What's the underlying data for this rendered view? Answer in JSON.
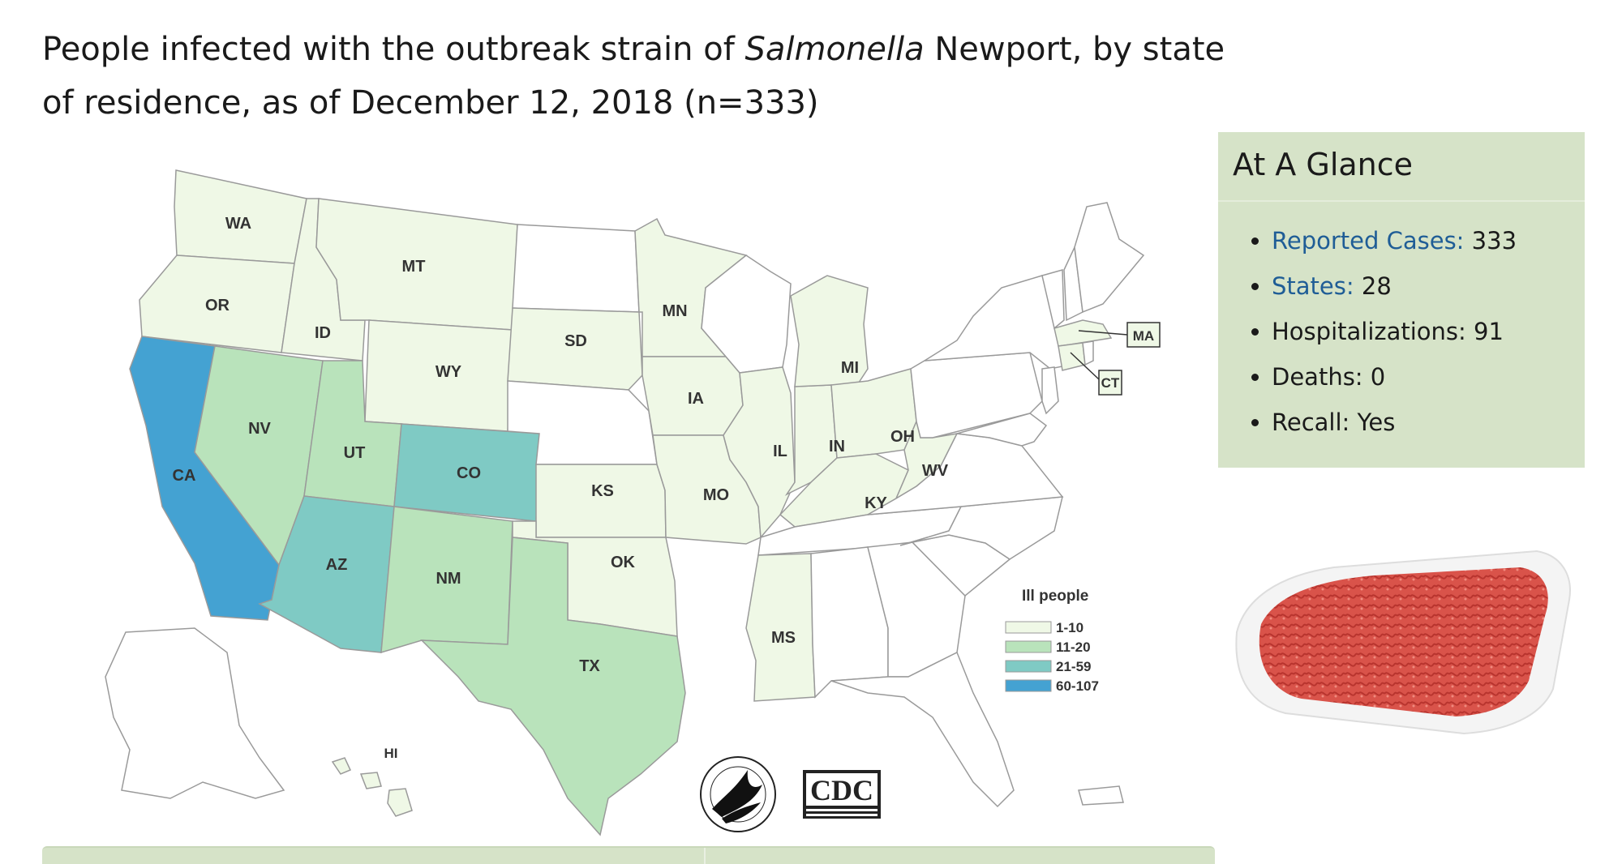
{
  "title": {
    "part1": "People infected with the outbreak strain of ",
    "italic": "Salmonella",
    "part2": " Newport, by state of residence, as of December 12, 2018 (n=333)"
  },
  "map": {
    "colors": {
      "none": "#ffffff",
      "low": "#eff8e6",
      "mid": "#b9e3bb",
      "high": "#7fcac4",
      "top": "#44a2d2"
    },
    "states": [
      {
        "abbr": "WA",
        "bin": "low"
      },
      {
        "abbr": "OR",
        "bin": "low"
      },
      {
        "abbr": "CA",
        "bin": "top"
      },
      {
        "abbr": "ID",
        "bin": "low"
      },
      {
        "abbr": "NV",
        "bin": "mid"
      },
      {
        "abbr": "MT",
        "bin": "low"
      },
      {
        "abbr": "WY",
        "bin": "low"
      },
      {
        "abbr": "UT",
        "bin": "mid"
      },
      {
        "abbr": "AZ",
        "bin": "high"
      },
      {
        "abbr": "CO",
        "bin": "high"
      },
      {
        "abbr": "NM",
        "bin": "mid"
      },
      {
        "abbr": "TX",
        "bin": "mid"
      },
      {
        "abbr": "SD",
        "bin": "low"
      },
      {
        "abbr": "KS",
        "bin": "low"
      },
      {
        "abbr": "OK",
        "bin": "low"
      },
      {
        "abbr": "MN",
        "bin": "low"
      },
      {
        "abbr": "IA",
        "bin": "low"
      },
      {
        "abbr": "MO",
        "bin": "low"
      },
      {
        "abbr": "IL",
        "bin": "low"
      },
      {
        "abbr": "IN",
        "bin": "low"
      },
      {
        "abbr": "MI",
        "bin": "low"
      },
      {
        "abbr": "OH",
        "bin": "low"
      },
      {
        "abbr": "KY",
        "bin": "low"
      },
      {
        "abbr": "WV",
        "bin": "low"
      },
      {
        "abbr": "MS",
        "bin": "low"
      },
      {
        "abbr": "MA",
        "bin": "low"
      },
      {
        "abbr": "CT",
        "bin": "low"
      },
      {
        "abbr": "HI",
        "bin": "low"
      }
    ],
    "legend": {
      "title": "Ill people",
      "items": [
        {
          "label": "1-10",
          "color": "#eff8e6"
        },
        {
          "label": "11-20",
          "color": "#b9e3bb"
        },
        {
          "label": "21-59",
          "color": "#7fcac4"
        },
        {
          "label": "60-107",
          "color": "#44a2d2"
        }
      ]
    },
    "logos": {
      "cdc": "CDC"
    }
  },
  "glance": {
    "heading": "At A Glance",
    "items": [
      {
        "label": "Reported Cases:",
        "value": " 333",
        "link": true
      },
      {
        "label": "States:",
        "value": " 28",
        "link": true
      },
      {
        "label": "Hospitalizations:",
        "value": " 91",
        "link": false
      },
      {
        "label": "Deaths:",
        "value": " 0",
        "link": false
      },
      {
        "label": "Recall:",
        "value": " Yes",
        "link": false
      }
    ]
  }
}
